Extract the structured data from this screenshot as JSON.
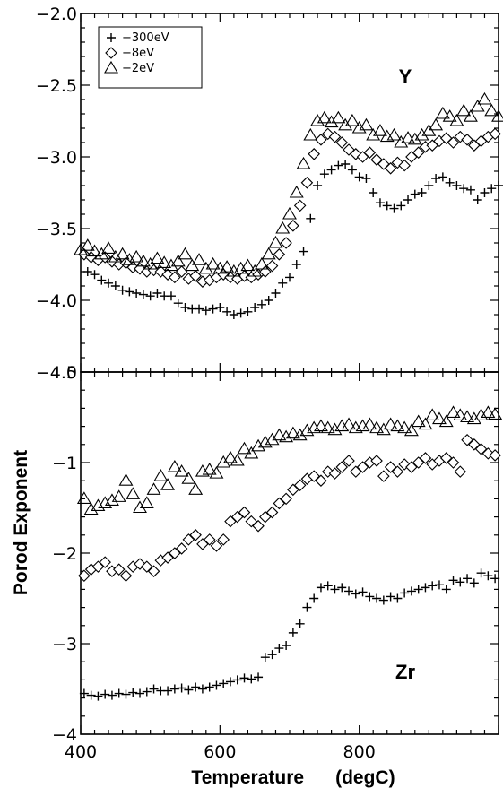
{
  "chart_data": [
    {
      "type": "scatter",
      "panel": "top",
      "annotation": "Y",
      "xlim": [
        400,
        1000
      ],
      "ylim": [
        -4.5,
        -2.0
      ],
      "yticks": [
        "-2.0",
        "-2.5",
        "-3.0",
        "-3.5",
        "-4.0",
        "-4.5"
      ],
      "yticks_values": [
        -2.0,
        -2.5,
        -3.0,
        -3.5,
        -4.0,
        -4.5
      ],
      "legend": {
        "placement": "top-left",
        "entries": [
          "-300eV",
          "-8eV",
          "-2eV"
        ]
      },
      "series": [
        {
          "name": "-300eV",
          "marker": "plus",
          "x": [
            410,
            420,
            430,
            440,
            450,
            460,
            470,
            480,
            490,
            500,
            510,
            520,
            530,
            540,
            550,
            560,
            570,
            580,
            590,
            600,
            610,
            620,
            630,
            640,
            650,
            660,
            670,
            680,
            690,
            700,
            710,
            720,
            730,
            740,
            750,
            760,
            770,
            780,
            790,
            800,
            810,
            820,
            830,
            840,
            850,
            860,
            870,
            880,
            890,
            900,
            910,
            920,
            930,
            940,
            950,
            960,
            970,
            980,
            990,
            1000
          ],
          "y": [
            -3.8,
            -3.82,
            -3.86,
            -3.88,
            -3.9,
            -3.93,
            -3.94,
            -3.95,
            -3.96,
            -3.97,
            -3.95,
            -3.97,
            -3.97,
            -4.02,
            -4.05,
            -4.06,
            -4.06,
            -4.07,
            -4.06,
            -4.05,
            -4.08,
            -4.1,
            -4.09,
            -4.08,
            -4.05,
            -4.03,
            -4.0,
            -3.95,
            -3.88,
            -3.84,
            -3.75,
            -3.66,
            -3.43,
            -3.2,
            -3.12,
            -3.09,
            -3.06,
            -3.05,
            -3.09,
            -3.14,
            -3.15,
            -3.25,
            -3.32,
            -3.34,
            -3.36,
            -3.34,
            -3.3,
            -3.26,
            -3.25,
            -3.2,
            -3.15,
            -3.14,
            -3.18,
            -3.2,
            -3.22,
            -3.23,
            -3.3,
            -3.25,
            -3.22,
            -3.2
          ]
        },
        {
          "name": "-8eV",
          "marker": "diamond",
          "x": [
            405,
            415,
            425,
            435,
            445,
            455,
            465,
            475,
            485,
            495,
            505,
            515,
            525,
            535,
            545,
            555,
            565,
            575,
            585,
            595,
            605,
            615,
            625,
            635,
            645,
            655,
            665,
            675,
            685,
            695,
            705,
            715,
            725,
            735,
            745,
            755,
            765,
            775,
            785,
            795,
            805,
            815,
            825,
            835,
            845,
            855,
            865,
            875,
            885,
            895,
            905,
            915,
            925,
            935,
            945,
            955,
            965,
            975,
            985,
            995
          ],
          "y": [
            -3.68,
            -3.7,
            -3.72,
            -3.7,
            -3.73,
            -3.75,
            -3.74,
            -3.77,
            -3.78,
            -3.8,
            -3.79,
            -3.8,
            -3.82,
            -3.84,
            -3.8,
            -3.85,
            -3.83,
            -3.87,
            -3.86,
            -3.84,
            -3.82,
            -3.84,
            -3.85,
            -3.83,
            -3.84,
            -3.82,
            -3.8,
            -3.76,
            -3.68,
            -3.6,
            -3.48,
            -3.34,
            -3.18,
            -2.98,
            -2.88,
            -2.84,
            -2.86,
            -2.9,
            -2.95,
            -2.98,
            -3.0,
            -2.97,
            -3.02,
            -3.05,
            -3.08,
            -3.04,
            -3.06,
            -3.0,
            -2.97,
            -2.93,
            -2.92,
            -2.89,
            -2.87,
            -2.9,
            -2.86,
            -2.88,
            -2.92,
            -2.89,
            -2.86,
            -2.84
          ]
        },
        {
          "name": "-2eV",
          "marker": "triangle",
          "x": [
            400,
            410,
            420,
            430,
            440,
            450,
            460,
            470,
            480,
            490,
            500,
            510,
            520,
            530,
            540,
            550,
            560,
            570,
            580,
            590,
            600,
            610,
            620,
            630,
            640,
            650,
            660,
            670,
            680,
            690,
            700,
            710,
            720,
            730,
            740,
            750,
            760,
            770,
            780,
            790,
            800,
            810,
            820,
            830,
            840,
            850,
            860,
            870,
            880,
            890,
            900,
            910,
            920,
            930,
            940,
            950,
            960,
            970,
            980,
            990,
            1000
          ],
          "y": [
            -3.65,
            -3.62,
            -3.66,
            -3.68,
            -3.64,
            -3.7,
            -3.68,
            -3.72,
            -3.7,
            -3.73,
            -3.75,
            -3.71,
            -3.74,
            -3.76,
            -3.73,
            -3.68,
            -3.76,
            -3.72,
            -3.78,
            -3.75,
            -3.78,
            -3.77,
            -3.8,
            -3.78,
            -3.76,
            -3.8,
            -3.75,
            -3.68,
            -3.6,
            -3.5,
            -3.4,
            -3.25,
            -3.05,
            -2.85,
            -2.75,
            -2.73,
            -2.76,
            -2.73,
            -2.78,
            -2.75,
            -2.8,
            -2.78,
            -2.85,
            -2.82,
            -2.86,
            -2.85,
            -2.9,
            -2.87,
            -2.88,
            -2.85,
            -2.82,
            -2.78,
            -2.7,
            -2.72,
            -2.75,
            -2.68,
            -2.72,
            -2.65,
            -2.6,
            -2.68,
            -2.72
          ]
        }
      ]
    },
    {
      "type": "scatter",
      "panel": "bottom",
      "annotation": "Zr",
      "xlabel": "Temperature      (degC)",
      "ylabel": "Porod Exponent",
      "xlim": [
        400,
        1000
      ],
      "ylim": [
        -4,
        0
      ],
      "xticks": [
        "400",
        "600",
        "800"
      ],
      "xticks_values": [
        400,
        600,
        800
      ],
      "yticks": [
        "0",
        "-1",
        "-2",
        "-3",
        "-4"
      ],
      "yticks_values": [
        0,
        -1,
        -2,
        -3,
        -4
      ],
      "series": [
        {
          "name": "-300eV",
          "marker": "plus",
          "x": [
            405,
            415,
            425,
            435,
            445,
            455,
            465,
            475,
            485,
            495,
            505,
            515,
            525,
            535,
            545,
            555,
            565,
            575,
            585,
            595,
            605,
            615,
            625,
            635,
            645,
            655,
            665,
            675,
            685,
            695,
            705,
            715,
            725,
            735,
            745,
            755,
            765,
            775,
            785,
            795,
            805,
            815,
            825,
            835,
            845,
            855,
            865,
            875,
            885,
            895,
            905,
            915,
            925,
            935,
            945,
            955,
            965,
            975,
            985,
            995
          ],
          "y": [
            -3.55,
            -3.57,
            -3.58,
            -3.56,
            -3.57,
            -3.55,
            -3.56,
            -3.54,
            -3.55,
            -3.53,
            -3.5,
            -3.52,
            -3.52,
            -3.5,
            -3.49,
            -3.51,
            -3.48,
            -3.5,
            -3.48,
            -3.46,
            -3.44,
            -3.42,
            -3.4,
            -3.38,
            -3.39,
            -3.37,
            -3.15,
            -3.12,
            -3.05,
            -3.02,
            -2.88,
            -2.78,
            -2.6,
            -2.5,
            -2.38,
            -2.36,
            -2.4,
            -2.38,
            -2.42,
            -2.45,
            -2.43,
            -2.48,
            -2.5,
            -2.52,
            -2.48,
            -2.5,
            -2.44,
            -2.42,
            -2.4,
            -2.38,
            -2.36,
            -2.35,
            -2.4,
            -2.3,
            -2.32,
            -2.28,
            -2.33,
            -2.22,
            -2.25,
            -2.28
          ]
        },
        {
          "name": "-8eV",
          "marker": "diamond",
          "x": [
            405,
            415,
            425,
            435,
            445,
            455,
            465,
            475,
            485,
            495,
            505,
            515,
            525,
            535,
            545,
            555,
            565,
            575,
            585,
            595,
            605,
            615,
            625,
            635,
            645,
            655,
            665,
            675,
            685,
            695,
            705,
            715,
            725,
            735,
            745,
            755,
            765,
            775,
            785,
            795,
            805,
            815,
            825,
            835,
            845,
            855,
            865,
            875,
            885,
            895,
            905,
            915,
            925,
            935,
            945,
            955,
            965,
            975,
            985,
            995
          ],
          "y": [
            -2.25,
            -2.18,
            -2.15,
            -2.1,
            -2.2,
            -2.18,
            -2.25,
            -2.15,
            -2.12,
            -2.15,
            -2.2,
            -2.08,
            -2.05,
            -2.0,
            -1.95,
            -1.85,
            -1.8,
            -1.9,
            -1.85,
            -1.92,
            -1.85,
            -1.65,
            -1.6,
            -1.55,
            -1.65,
            -1.7,
            -1.6,
            -1.55,
            -1.45,
            -1.4,
            -1.3,
            -1.25,
            -1.18,
            -1.15,
            -1.2,
            -1.1,
            -1.12,
            -1.05,
            -0.98,
            -1.1,
            -1.05,
            -1.0,
            -0.98,
            -1.15,
            -1.05,
            -1.1,
            -1.02,
            -1.05,
            -1.0,
            -0.95,
            -1.02,
            -0.98,
            -0.95,
            -1.0,
            -1.1,
            -0.75,
            -0.8,
            -0.85,
            -0.9,
            -0.92
          ]
        },
        {
          "name": "-2eV",
          "marker": "triangle",
          "x": [
            405,
            415,
            425,
            435,
            445,
            455,
            465,
            475,
            485,
            495,
            505,
            515,
            525,
            535,
            545,
            555,
            565,
            575,
            585,
            595,
            605,
            615,
            625,
            635,
            645,
            655,
            665,
            675,
            685,
            695,
            705,
            715,
            725,
            735,
            745,
            755,
            765,
            775,
            785,
            795,
            805,
            815,
            825,
            835,
            845,
            855,
            865,
            875,
            885,
            895,
            905,
            915,
            925,
            935,
            945,
            955,
            965,
            975,
            985,
            995
          ],
          "y": [
            -1.4,
            -1.52,
            -1.48,
            -1.45,
            -1.42,
            -1.38,
            -1.2,
            -1.35,
            -1.5,
            -1.45,
            -1.3,
            -1.15,
            -1.25,
            -1.05,
            -1.1,
            -1.18,
            -1.3,
            -1.1,
            -1.08,
            -1.12,
            -1.0,
            -0.95,
            -0.98,
            -0.85,
            -0.9,
            -0.82,
            -0.78,
            -0.75,
            -0.7,
            -0.72,
            -0.68,
            -0.7,
            -0.65,
            -0.62,
            -0.6,
            -0.62,
            -0.64,
            -0.6,
            -0.58,
            -0.62,
            -0.6,
            -0.58,
            -0.62,
            -0.64,
            -0.58,
            -0.6,
            -0.62,
            -0.65,
            -0.55,
            -0.58,
            -0.48,
            -0.52,
            -0.55,
            -0.45,
            -0.48,
            -0.5,
            -0.52,
            -0.48,
            -0.45,
            -0.47
          ]
        }
      ]
    }
  ]
}
